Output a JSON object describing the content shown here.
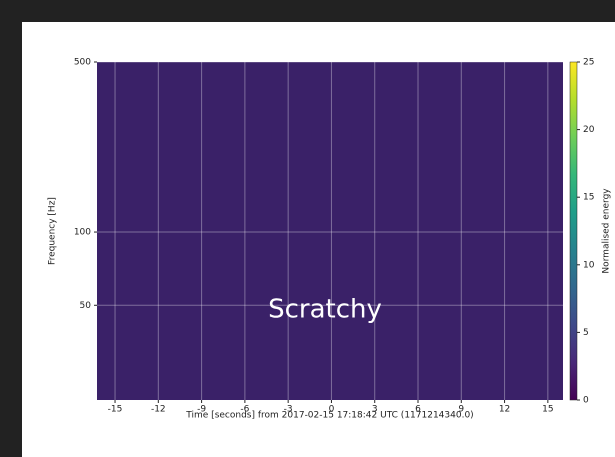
{
  "chart_data": {
    "type": "heatmap",
    "xlabel": "Time [seconds] from 2017-02-15 17:18:42 UTC (1171214340.0)",
    "ylabel": "Frequency [Hz]",
    "annotation": "Scratchy",
    "colorbar_label": "Normalised energy",
    "xlim": [
      -16.25,
      16.05
    ],
    "xticks": [
      -15,
      -12,
      -9,
      -6,
      -3,
      0,
      3,
      6,
      9,
      12,
      15
    ],
    "ylim": [
      20.4,
      500
    ],
    "yscale": "log",
    "yticks": [
      50,
      100,
      500
    ],
    "clim": [
      0,
      25
    ],
    "cticks": [
      0,
      5,
      10,
      15,
      20,
      25
    ],
    "colormap": [
      "#440154",
      "#482878",
      "#3e4989",
      "#31688e",
      "#26828e",
      "#1f9e89",
      "#35b779",
      "#6ece58",
      "#b5de2b",
      "#fde725"
    ],
    "grid": true
  }
}
